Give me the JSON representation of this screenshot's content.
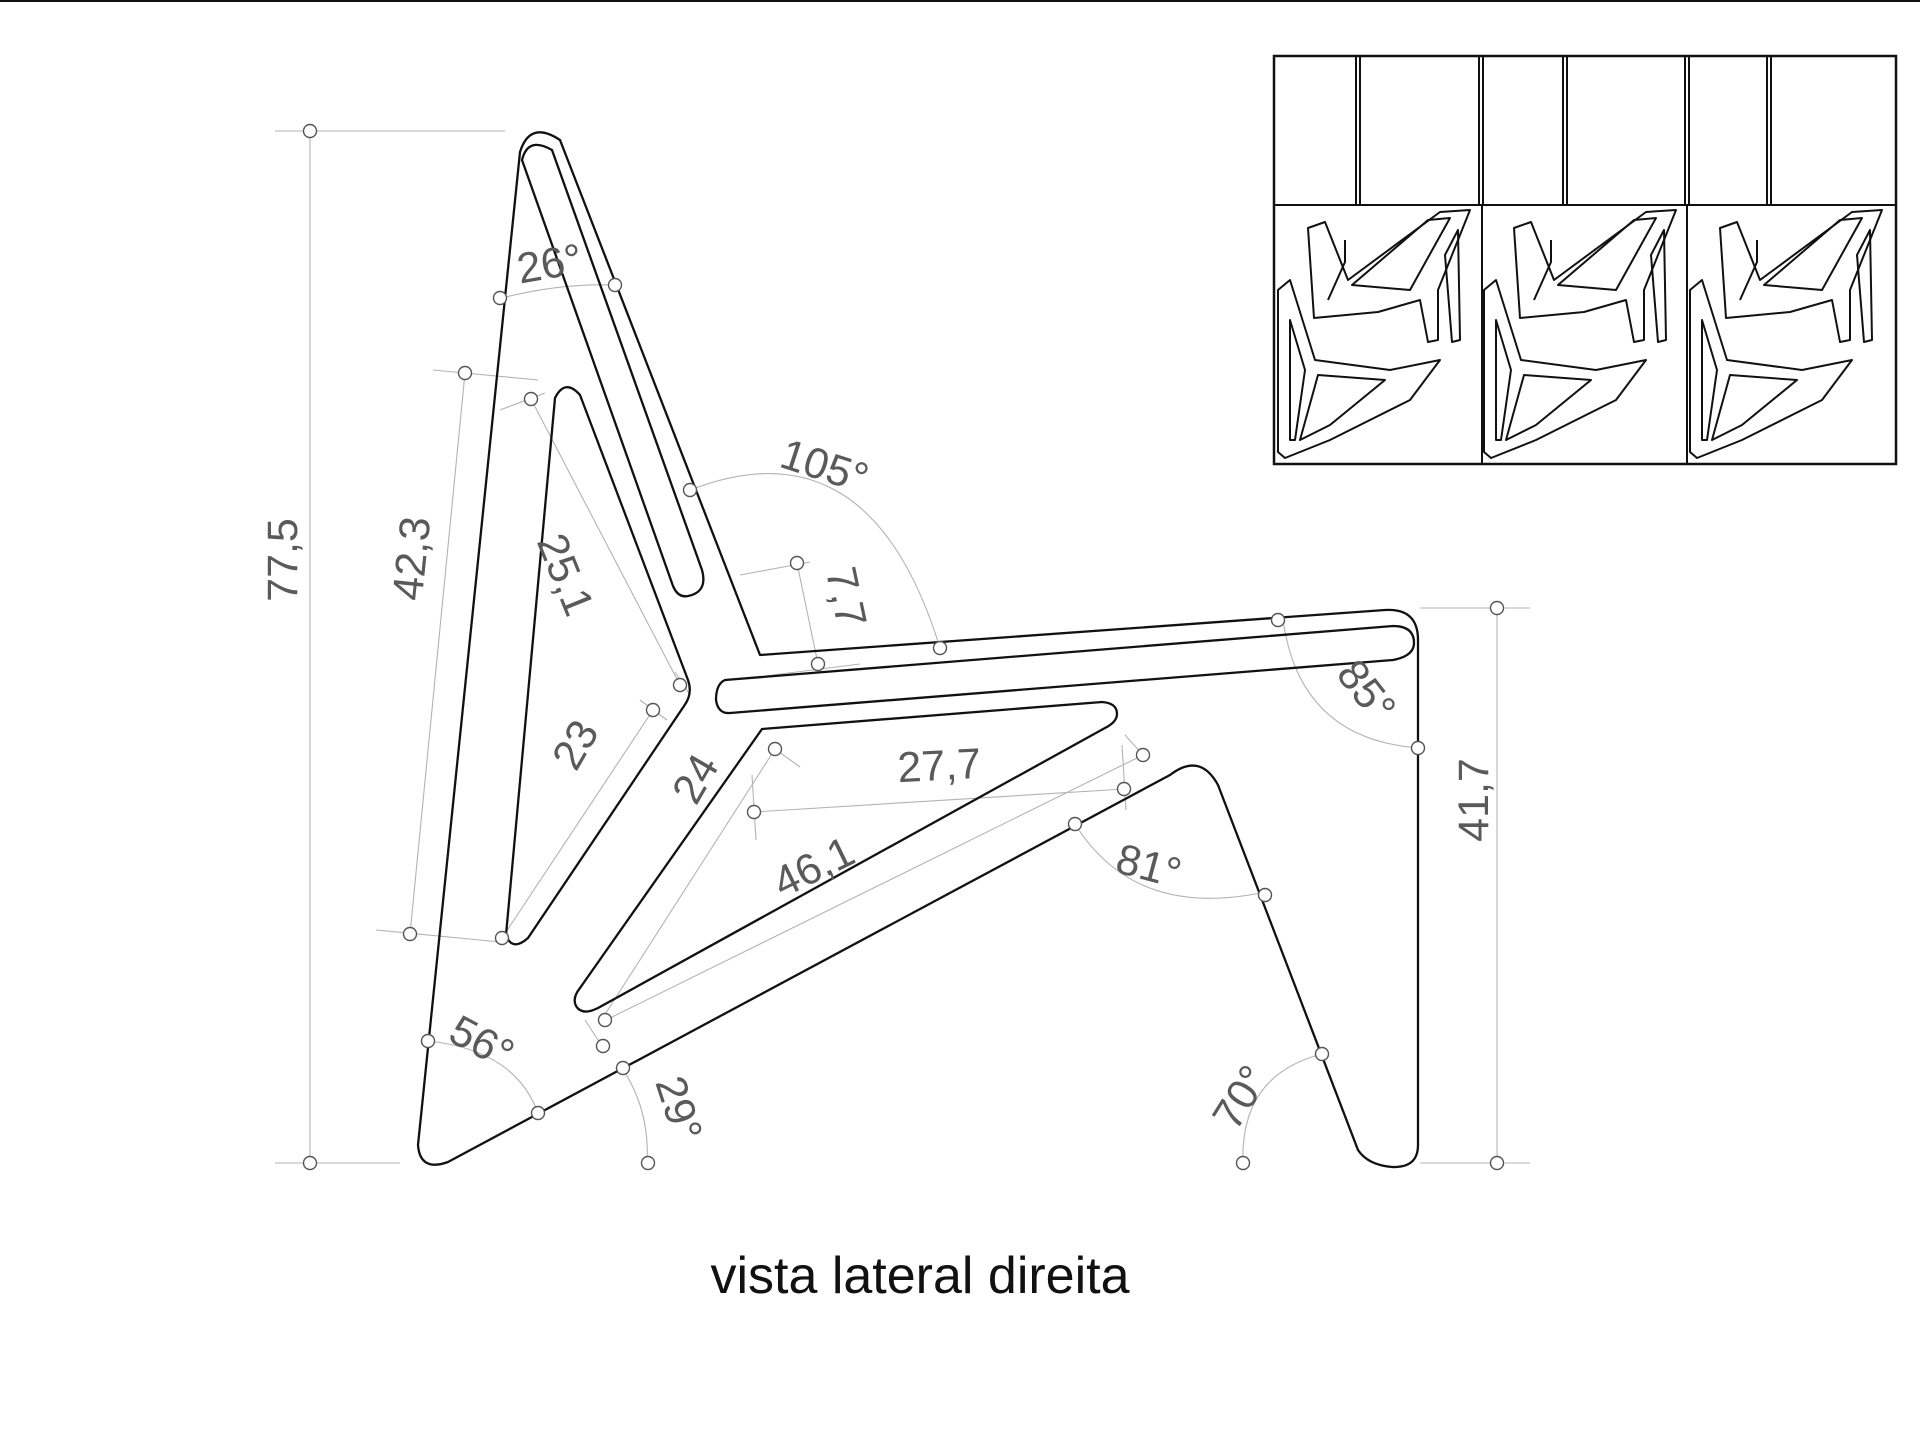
{
  "view_label": "vista lateral direita",
  "dimensions": {
    "overall_height": "77,5",
    "seat_height": "41,7",
    "front_leg_length": "42,3",
    "back_slot_length": "25,1",
    "inner_edge": "23",
    "seat_slot_gap": "7,7",
    "arm_length": "24",
    "lower_brace": "27,7",
    "base_diagonal": "46,1"
  },
  "angles": {
    "backrest_top": "26°",
    "back_seat": "105°",
    "seat_front": "85°",
    "front_leg": "81°",
    "rear_foot": "56°",
    "base_junction": "29°",
    "front_foot": "70°"
  },
  "colors": {
    "line": "#111111",
    "guide": "#b3b3b3",
    "text": "#5a5a5a"
  }
}
